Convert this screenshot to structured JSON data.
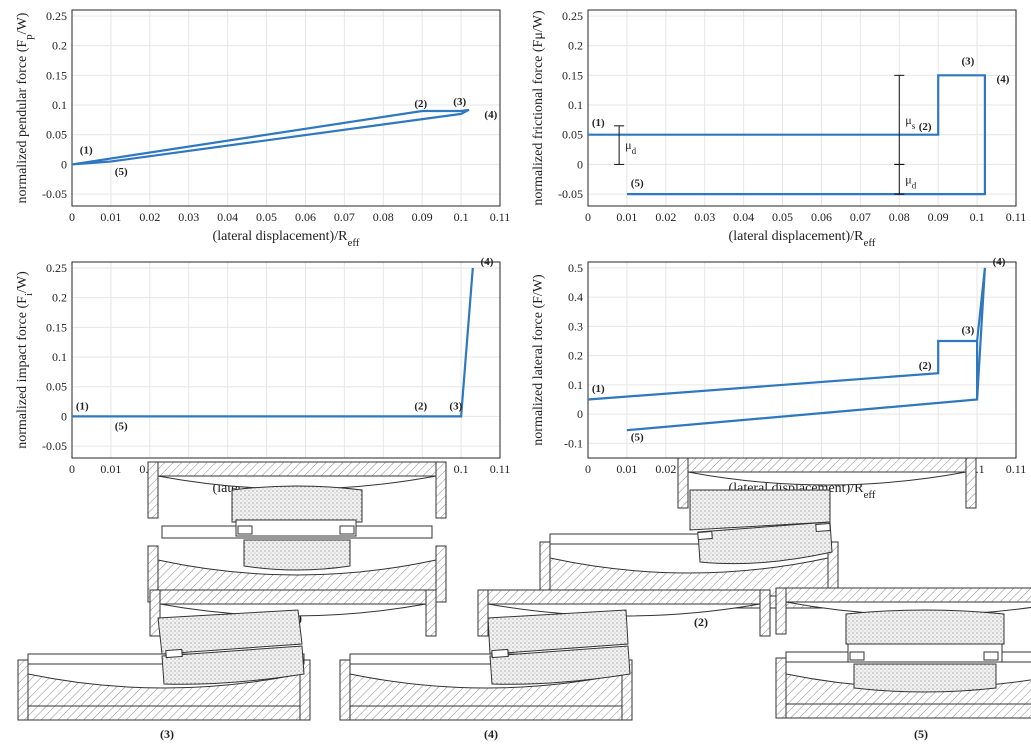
{
  "colors": {
    "series": "#2f78bf",
    "axis": "#262626",
    "grid": "#e6e6e6"
  },
  "chart_data": [
    {
      "type": "line",
      "xlabel": "(lateral displacement)/R",
      "xlabel_sub": "eff",
      "ylabel": "normalized pendular force (F",
      "ylabel_sub": "p",
      "ylabel_end": "/W)",
      "xlim": [
        0,
        0.11
      ],
      "ylim": [
        -0.07,
        0.26
      ],
      "xticks": [
        "0",
        "0.01",
        "0.02",
        "0.03",
        "0.04",
        "0.05",
        "0.06",
        "0.07",
        "0.08",
        "0.09",
        "0.1",
        "0.11"
      ],
      "yticks": [
        "-0.05",
        "0",
        "0.05",
        "0.1",
        "0.15",
        "0.2",
        "0.25"
      ],
      "grid": true,
      "series": [
        {
          "x": [
            0,
            0.09,
            0.1,
            0.102,
            0.1,
            0.01,
            0
          ],
          "y": [
            0,
            0.09,
            0.09,
            0.092,
            0.085,
            0.005,
            0
          ]
        }
      ],
      "annotations": [
        {
          "text": "(1)",
          "x": 0.002,
          "y": 0.018
        },
        {
          "text": "(2)",
          "x": 0.088,
          "y": 0.097
        },
        {
          "text": "(3)",
          "x": 0.098,
          "y": 0.1
        },
        {
          "text": "(4)",
          "x": 0.106,
          "y": 0.078
        },
        {
          "text": "(5)",
          "x": 0.011,
          "y": -0.018
        }
      ]
    },
    {
      "type": "line",
      "xlabel": "(lateral displacement)/R",
      "xlabel_sub": "eff",
      "ylabel": "normalized frictional force (Fμ/W)",
      "ylabel_sub": "",
      "ylabel_end": "",
      "xlim": [
        0,
        0.11
      ],
      "ylim": [
        -0.07,
        0.26
      ],
      "xticks": [
        "0",
        "0.01",
        "0.02",
        "0.03",
        "0.04",
        "0.05",
        "0.06",
        "0.07",
        "0.08",
        "0.09",
        "0.1",
        "0.11"
      ],
      "yticks": [
        "-0.05",
        "0",
        "0.05",
        "0.1",
        "0.15",
        "0.2",
        "0.25"
      ],
      "grid": true,
      "series": [
        {
          "x": [
            0,
            0.09,
            0.09,
            0.102,
            0.102,
            0.01
          ],
          "y": [
            0.05,
            0.05,
            0.15,
            0.15,
            -0.05,
            -0.05
          ]
        }
      ],
      "annotations": [
        {
          "text": "(1)",
          "x": 0.001,
          "y": 0.065
        },
        {
          "text": "(2)",
          "x": 0.085,
          "y": 0.058
        },
        {
          "text": "(3)",
          "x": 0.096,
          "y": 0.168
        },
        {
          "text": "(4)",
          "x": 0.105,
          "y": 0.138
        },
        {
          "text": "(5)",
          "x": 0.011,
          "y": -0.037
        }
      ],
      "markers": [
        {
          "label": "μ",
          "label_sub": "d",
          "x": 0.008,
          "y0": 0,
          "y1": 0.065
        },
        {
          "label": "μ",
          "label_sub": "s",
          "x": 0.08,
          "y0": 0,
          "y1": 0.15
        },
        {
          "label": "μ",
          "label_sub": "d",
          "x": 0.08,
          "y0": -0.05,
          "y1": 0
        }
      ]
    },
    {
      "type": "line",
      "xlabel": "(lateral displacement)/R",
      "xlabel_sub": "eff",
      "ylabel": "normalized impact force (F",
      "ylabel_sub": "i",
      "ylabel_end": "/W)",
      "xlim": [
        0,
        0.11
      ],
      "ylim": [
        -0.07,
        0.26
      ],
      "xticks": [
        "0",
        "0.01",
        "0.02",
        "0.03",
        "0.04",
        "0.05",
        "0.06",
        "0.07",
        "0.08",
        "0.09",
        "0.1",
        "0.11"
      ],
      "yticks": [
        "-0.05",
        "0",
        "0.05",
        "0.1",
        "0.15",
        "0.2",
        "0.25"
      ],
      "grid": true,
      "series": [
        {
          "x": [
            0,
            0.1,
            0.103
          ],
          "y": [
            0,
            0,
            0.25
          ]
        }
      ],
      "annotations": [
        {
          "text": "(1)",
          "x": 0.001,
          "y": 0.012
        },
        {
          "text": "(2)",
          "x": 0.088,
          "y": 0.012
        },
        {
          "text": "(3)",
          "x": 0.097,
          "y": 0.012
        },
        {
          "text": "(4)",
          "x": 0.105,
          "y": 0.255
        },
        {
          "text": "(5)",
          "x": 0.011,
          "y": -0.022
        }
      ]
    },
    {
      "type": "line",
      "xlabel": "(lateral displacement)/R",
      "xlabel_sub": "eff",
      "ylabel": "normalized lateral force (F/W)",
      "ylabel_sub": "",
      "ylabel_end": "",
      "xlim": [
        0,
        0.11
      ],
      "ylim": [
        -0.15,
        0.52
      ],
      "xticks": [
        "0",
        "0.01",
        "0.02",
        "0.03",
        "0.04",
        "0.05",
        "0.06",
        "0.07",
        "0.08",
        "0.09",
        "0.1",
        "0.11"
      ],
      "yticks": [
        "-0.1",
        "0",
        "0.1",
        "0.2",
        "0.3",
        "0.4",
        "0.5"
      ],
      "grid": true,
      "series": [
        {
          "x": [
            0,
            0.09,
            0.09,
            0.1,
            0.1,
            0.102,
            0.1,
            0.1,
            0.01
          ],
          "y": [
            0.05,
            0.14,
            0.25,
            0.25,
            0.05,
            0.5,
            0.25,
            0.05,
            -0.055
          ]
        }
      ],
      "annotations": [
        {
          "text": "(1)",
          "x": 0.001,
          "y": 0.075
        },
        {
          "text": "(2)",
          "x": 0.085,
          "y": 0.155
        },
        {
          "text": "(3)",
          "x": 0.096,
          "y": 0.275
        },
        {
          "text": "(4)",
          "x": 0.104,
          "y": 0.51
        },
        {
          "text": "(5)",
          "x": 0.011,
          "y": -0.09
        }
      ]
    }
  ],
  "diagram_labels": [
    "(1)",
    "(2)",
    "(3)",
    "(4)",
    "(5)"
  ]
}
